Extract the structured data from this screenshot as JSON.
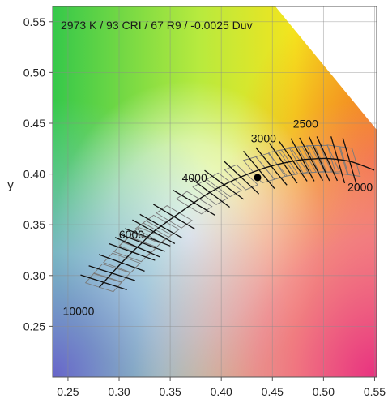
{
  "chart_data": {
    "type": "scatter",
    "title": "2973 K / 93 CRI / 67 R9 / -0.0025 Duv",
    "xlabel": "",
    "ylabel": "y",
    "xlim": [
      0.235,
      0.552
    ],
    "ylim": [
      0.2,
      0.565
    ],
    "x_ticks": [
      "0.25",
      "0.30",
      "0.35",
      "0.40",
      "0.45",
      "0.50",
      "0.55"
    ],
    "y_ticks": [
      "0.25",
      "0.30",
      "0.35",
      "0.40",
      "0.45",
      "0.50",
      "0.55"
    ],
    "x_tick_values": [
      0.25,
      0.3,
      0.35,
      0.4,
      0.45,
      0.5,
      0.55
    ],
    "y_tick_values": [
      0.25,
      0.3,
      0.35,
      0.4,
      0.45,
      0.5,
      0.55
    ],
    "grid": true,
    "planckian_locus": {
      "x": [
        0.2806,
        0.2952,
        0.3137,
        0.3221,
        0.3318,
        0.3451,
        0.3805,
        0.4052,
        0.4369,
        0.4589,
        0.4765,
        0.4917,
        0.5056,
        0.5267,
        0.5496
      ],
      "y": [
        0.2883,
        0.3048,
        0.3241,
        0.3318,
        0.3416,
        0.3516,
        0.3767,
        0.3907,
        0.4041,
        0.4103,
        0.4137,
        0.4149,
        0.4151,
        0.4122,
        0.4038
      ]
    },
    "isotherm_cct_labels": [
      {
        "text": "10000",
        "x": 0.2806,
        "y": 0.2883
      },
      {
        "text": "6000",
        "x": 0.3221,
        "y": 0.3318
      },
      {
        "text": "4000",
        "x": 0.3805,
        "y": 0.3767
      },
      {
        "text": "3000",
        "x": 0.4369,
        "y": 0.4041
      },
      {
        "text": "2500",
        "x": 0.4765,
        "y": 0.4137
      },
      {
        "text": "2000",
        "x": 0.5267,
        "y": 0.4122
      }
    ],
    "measured_point": {
      "x": 0.4355,
      "y": 0.3965
    }
  }
}
